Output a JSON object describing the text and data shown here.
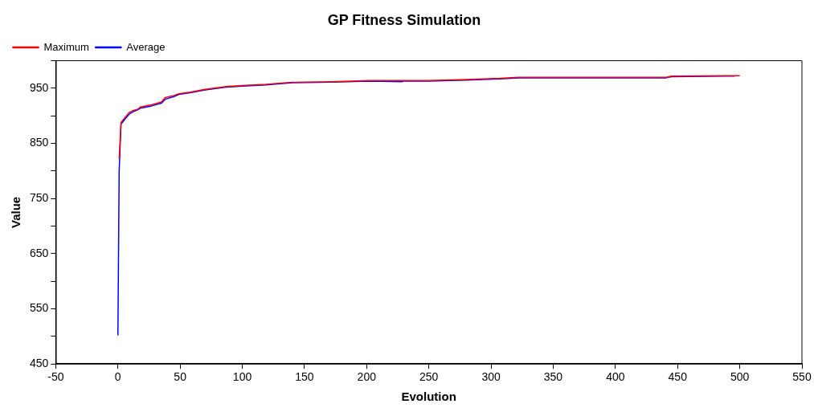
{
  "chart_data": {
    "type": "line",
    "title": "GP Fitness Simulation",
    "xlabel": "Evolution",
    "ylabel": "Value",
    "xlim": [
      -50,
      550
    ],
    "xticks": [
      -50,
      0,
      50,
      100,
      150,
      200,
      250,
      300,
      350,
      400,
      450,
      500,
      550
    ],
    "ylim": [
      450,
      1000
    ],
    "yticks": [
      450,
      {
        "value": 500,
        "label": null
      },
      550,
      {
        "value": 600,
        "label": null
      },
      650,
      {
        "value": 700,
        "label": null
      },
      750,
      {
        "value": 800,
        "label": null
      },
      850,
      {
        "value": 900,
        "label": null
      },
      950,
      {
        "value": 1000,
        "label": null
      }
    ],
    "grid": false,
    "legend": "top left",
    "marker": "none",
    "line_style": "solid",
    "series": [
      {
        "name": "Maximum",
        "color": "#ff0000",
        "x": [
          1,
          2.5,
          6,
          9,
          12.5,
          16,
          18,
          27,
          35,
          38,
          45,
          49,
          58,
          70,
          87,
          100,
          119,
          140,
          172,
          202,
          250,
          280,
          307,
          322,
          441,
          445,
          488,
          500
        ],
        "values": [
          822,
          888,
          898,
          906,
          910,
          912,
          916,
          920,
          925,
          933,
          937,
          940,
          943,
          948,
          953,
          955,
          957,
          961,
          962,
          964,
          964,
          966,
          968,
          970,
          970,
          972,
          973,
          973
        ]
      },
      {
        "name": "Average",
        "color": "#0000ff",
        "x": [
          0,
          1,
          2.5,
          6,
          9,
          12.5,
          16,
          18,
          27,
          35,
          38,
          45,
          49,
          58,
          70,
          87,
          100,
          119,
          140,
          172,
          202,
          228,
          230,
          250,
          280,
          307,
          322,
          441,
          445,
          488,
          496
        ],
        "values": [
          502,
          800,
          885,
          895,
          903,
          908,
          911,
          914,
          918,
          923,
          930,
          935,
          939,
          942,
          947,
          952,
          954,
          956,
          960,
          961,
          963,
          962,
          963,
          963,
          965,
          967,
          969,
          969,
          971,
          972,
          972
        ]
      }
    ]
  }
}
